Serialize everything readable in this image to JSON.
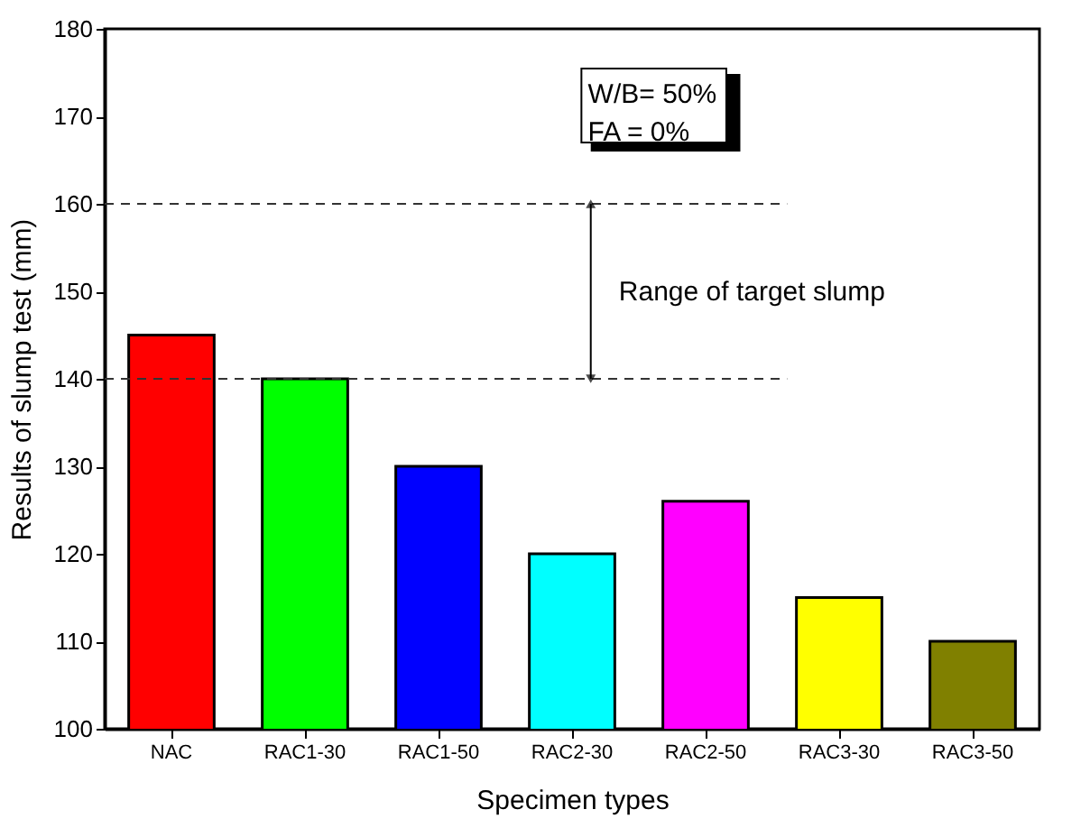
{
  "chart_data": {
    "type": "bar",
    "xlabel": "Specimen types",
    "ylabel": "Results of slump test (mm)",
    "categories": [
      "NAC",
      "RAC1-30",
      "RAC1-50",
      "RAC2-30",
      "RAC2-50",
      "RAC3-30",
      "RAC3-50"
    ],
    "values": [
      145,
      140,
      130,
      120,
      126,
      115,
      110
    ],
    "colors": [
      "#ff0000",
      "#00ff00",
      "#0000ff",
      "#00ffff",
      "#ff00ff",
      "#ffff00",
      "#808000"
    ],
    "ylim": [
      100,
      180
    ],
    "yticks": [
      100,
      110,
      120,
      130,
      140,
      150,
      160,
      170,
      180
    ],
    "ref_lines": [
      {
        "axis": "y",
        "value": 160,
        "line_style": "dashed"
      },
      {
        "axis": "y",
        "value": 140,
        "line_style": "dashed"
      }
    ],
    "annotations": [
      "W/B= 50%",
      "FA  = 0%",
      "Range of target slump"
    ]
  }
}
